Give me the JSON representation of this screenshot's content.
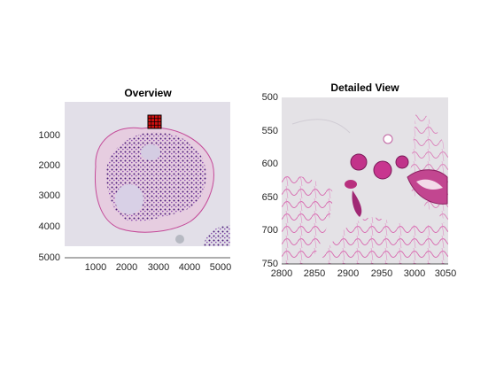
{
  "window": {
    "title": ""
  },
  "chart_data": [
    {
      "type": "image",
      "title": "Overview",
      "xlabel": "",
      "ylabel": "",
      "xlim": [
        0,
        5300
      ],
      "ylim": [
        5000,
        0
      ],
      "x_ticks": [
        "1000",
        "2000",
        "3000",
        "4000",
        "5000"
      ],
      "y_ticks": [
        "1000",
        "2000",
        "3000",
        "4000",
        "5000"
      ],
      "annotations": [
        {
          "type": "grid-box",
          "color": "#ff0000",
          "x": [
            2700,
            3200
          ],
          "y": [
            300,
            750
          ],
          "divisions": 4
        }
      ],
      "content": "h-and-e-tissue-slide-overview"
    },
    {
      "type": "image",
      "title": "Detailed View",
      "xlabel": "",
      "ylabel": "",
      "xlim": [
        2800,
        3050
      ],
      "ylim": [
        750,
        500
      ],
      "x_ticks": [
        "2800",
        "2850",
        "2900",
        "2950",
        "3000",
        "3050"
      ],
      "y_ticks": [
        "500",
        "550",
        "600",
        "650",
        "700",
        "750"
      ],
      "content": "h-and-e-tissue-slide-detail"
    }
  ]
}
